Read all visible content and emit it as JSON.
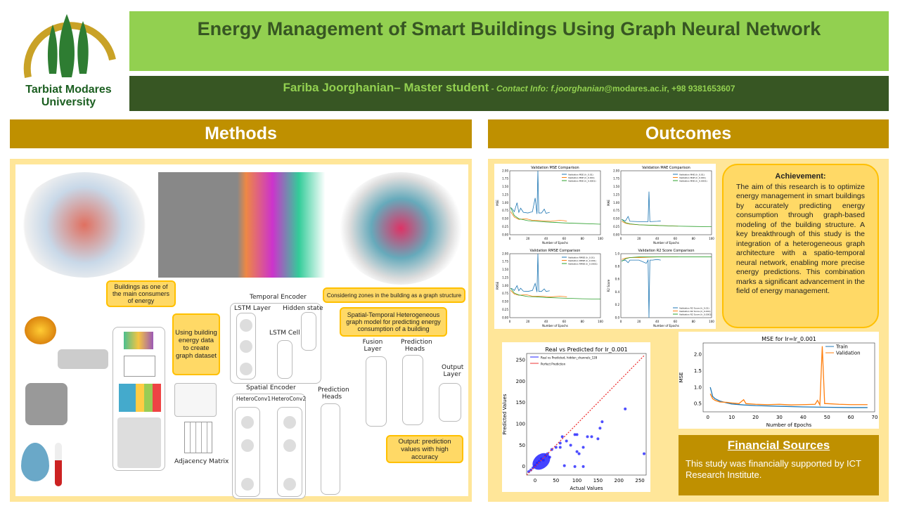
{
  "header": {
    "title": "Energy Management of Smart Buildings Using Graph Neural Network",
    "author": "Fariba Joorghanian– Master student",
    "contact_label": " - Contact Info: f.joorghanian",
    "contact_rest": "@modares.ac.ir, +98 9381653607"
  },
  "logo": {
    "line1": "Tarbiat Modares",
    "line2": "University",
    "colors": {
      "gold": "#c9a227",
      "green": "#2e7d32"
    }
  },
  "methods": {
    "heading": "Methods",
    "callouts": {
      "consumers": "Buildings as one of the main consumers of energy",
      "dataset": "Using building energy data to create graph dataset",
      "zones": "Considering zones in the building as a graph structure",
      "model": "Spatial-Temporal Heterogeneous graph model for predicting energy consumption of a building",
      "output": "Output: prediction values with high accuracy"
    },
    "diagram": {
      "temporal_encoder": "Temporal Encoder",
      "lstm_layer": "LSTM Layer",
      "hidden_state": "Hidden state",
      "lstm_cell": "LSTM Cell",
      "spatial_encoder": "Spatial Encoder",
      "heteroconv1": "HeteroConv1",
      "heteroconv2": "HeteroConv2",
      "prediction_heads": "Prediction Heads",
      "fusion_layer": "Fusion Layer",
      "prediction_heads2": "Prediction Heads",
      "output_layer": "Output Layer",
      "adjacency_matrix": "Adjacency Matrix"
    }
  },
  "outcomes": {
    "heading": "Outcomes",
    "achievement": {
      "title": "Achievement:",
      "text": "The aim of this research is to optimize energy management in smart buildings by accurately predicting energy consumption through graph-based modeling of the building structure. A key breakthrough of this study is the integration of a heterogeneous graph architecture with a spatio-temporal neural network, enabling more precise energy predictions. This combination marks a significant advancement in the field of energy management."
    },
    "financial": {
      "title": "Financial Sources",
      "text": "This study was financially supported by ICT Research Institute."
    }
  },
  "colors": {
    "lr_0.01": "#1f77b4",
    "lr_0.001": "#ff7f0e",
    "lr_0.0001": "#2ca02c",
    "train": "#1f77b4",
    "validation": "#ff7f0e"
  },
  "chart_data": [
    {
      "type": "line",
      "title": "Validation MSE Comparison",
      "xlabel": "Number of Epochs",
      "ylabel": "MSE",
      "xlim": [
        0,
        100
      ],
      "ylim": [
        0,
        2
      ],
      "xticks": [
        "0",
        "20",
        "40",
        "60",
        "80",
        "100"
      ],
      "yticks": [
        "0.00",
        "0.25",
        "0.50",
        "0.75",
        "1.00",
        "1.25",
        "1.50",
        "1.75",
        "2.00"
      ],
      "legend": "top-right",
      "series": [
        {
          "name": "Validation MSE (lr_0.01)",
          "x": [
            1,
            3,
            5,
            8,
            10,
            12,
            15,
            20,
            25,
            28,
            30,
            31,
            32,
            35,
            38,
            40,
            44
          ],
          "y": [
            0.85,
            0.8,
            0.72,
            1.0,
            0.7,
            0.83,
            0.7,
            0.68,
            0.72,
            1.15,
            0.65,
            2.0,
            0.68,
            0.68,
            0.8,
            0.67,
            0.7
          ]
        },
        {
          "name": "Validation MSE (lr_0.001)",
          "x": [
            1,
            5,
            10,
            18,
            25,
            35,
            45,
            55,
            60,
            63
          ],
          "y": [
            0.72,
            0.55,
            0.48,
            0.5,
            0.45,
            0.44,
            0.42,
            0.45,
            0.44,
            0.42
          ]
        },
        {
          "name": "Validation MSE (lr_0.0001)",
          "x": [
            1,
            5,
            10,
            20,
            30,
            40,
            60,
            80,
            100
          ],
          "y": [
            0.85,
            0.6,
            0.5,
            0.44,
            0.42,
            0.4,
            0.37,
            0.35,
            0.33
          ]
        }
      ]
    },
    {
      "type": "line",
      "title": "Validation MAE Comparison",
      "xlabel": "Number of Epochs",
      "ylabel": "MAE",
      "xlim": [
        0,
        100
      ],
      "ylim": [
        0,
        2
      ],
      "xticks": [
        "0",
        "20",
        "40",
        "60",
        "80",
        "100"
      ],
      "yticks": [
        "0.00",
        "0.25",
        "0.50",
        "0.75",
        "1.00",
        "1.25",
        "1.50",
        "1.75",
        "2.00"
      ],
      "legend": "top-right",
      "series": [
        {
          "name": "Validation MAE (lr_0.01)",
          "x": [
            1,
            5,
            8,
            10,
            20,
            30,
            31,
            32,
            40,
            44
          ],
          "y": [
            0.48,
            0.43,
            0.57,
            0.42,
            0.41,
            0.41,
            1.35,
            0.41,
            0.42,
            0.43
          ]
        },
        {
          "name": "Validation MAE (lr_0.001)",
          "x": [
            1,
            5,
            10,
            20,
            30,
            40,
            50,
            63
          ],
          "y": [
            0.42,
            0.36,
            0.33,
            0.31,
            0.3,
            0.29,
            0.28,
            0.27
          ]
        },
        {
          "name": "Validation MAE (lr_0.0001)",
          "x": [
            1,
            5,
            10,
            20,
            40,
            60,
            80,
            100
          ],
          "y": [
            0.48,
            0.38,
            0.34,
            0.31,
            0.29,
            0.27,
            0.26,
            0.25
          ]
        }
      ]
    },
    {
      "type": "line",
      "title": "Validation RMSE Comparison",
      "xlabel": "Number of Epochs",
      "ylabel": "RMSE",
      "xlim": [
        0,
        100
      ],
      "ylim": [
        0,
        2
      ],
      "xticks": [
        "0",
        "20",
        "40",
        "60",
        "80",
        "100"
      ],
      "yticks": [
        "0.00",
        "0.25",
        "0.50",
        "0.75",
        "1.00",
        "1.25",
        "1.50",
        "1.75",
        "2.00"
      ],
      "legend": "top-right",
      "series": [
        {
          "name": "Validation RMSE (lr_0.01)",
          "x": [
            1,
            3,
            5,
            8,
            10,
            12,
            15,
            20,
            25,
            28,
            30,
            31,
            32,
            35,
            38,
            40,
            44
          ],
          "y": [
            0.92,
            0.9,
            0.85,
            1.0,
            0.84,
            0.92,
            0.83,
            0.82,
            0.85,
            1.07,
            0.8,
            2.0,
            0.82,
            0.82,
            0.9,
            0.82,
            0.84
          ]
        },
        {
          "name": "Validation RMSE (lr_0.001)",
          "x": [
            1,
            5,
            10,
            18,
            25,
            35,
            45,
            55,
            60,
            63
          ],
          "y": [
            0.85,
            0.74,
            0.7,
            0.72,
            0.67,
            0.67,
            0.65,
            0.67,
            0.66,
            0.65
          ]
        },
        {
          "name": "Validation RMSE (lr_0.0001)",
          "x": [
            1,
            5,
            10,
            20,
            30,
            40,
            60,
            80,
            100
          ],
          "y": [
            0.92,
            0.77,
            0.71,
            0.66,
            0.65,
            0.63,
            0.61,
            0.59,
            0.58
          ]
        }
      ]
    },
    {
      "type": "line",
      "title": "Validation R2 Score Comparison",
      "xlabel": "Number of Epochs",
      "ylabel": "R2 Score",
      "xlim": [
        0,
        100
      ],
      "ylim": [
        0,
        1
      ],
      "xticks": [
        "0",
        "20",
        "40",
        "60",
        "80",
        "100"
      ],
      "yticks": [
        "0.0",
        "0.2",
        "0.4",
        "0.6",
        "0.8",
        "1.0"
      ],
      "legend": "bottom-right",
      "series": [
        {
          "name": "Validation R2 Score (lr_0.01)",
          "x": [
            1,
            5,
            8,
            10,
            20,
            28,
            30,
            31,
            32,
            35,
            40,
            44
          ],
          "y": [
            0.89,
            0.9,
            0.86,
            0.9,
            0.9,
            0.85,
            0.9,
            0.0,
            0.9,
            0.9,
            0.91,
            0.9
          ]
        },
        {
          "name": "Validation R2 Score (lr_0.001)",
          "x": [
            1,
            5,
            10,
            20,
            40,
            63
          ],
          "y": [
            0.91,
            0.93,
            0.94,
            0.94,
            0.95,
            0.95
          ]
        },
        {
          "name": "Validation R2 Score (lr_0.0001)",
          "x": [
            1,
            5,
            10,
            20,
            40,
            60,
            100
          ],
          "y": [
            0.88,
            0.92,
            0.94,
            0.95,
            0.95,
            0.95,
            0.95
          ]
        }
      ]
    },
    {
      "type": "scatter",
      "title": "Real vs Predicted for lr_0.001",
      "xlabel": "Actual Values",
      "ylabel": "Predicted Values",
      "xlim": [
        -20,
        265
      ],
      "ylim": [
        -20,
        265
      ],
      "xticks": [
        "0",
        "50",
        "100",
        "150",
        "200",
        "250"
      ],
      "yticks": [
        "0",
        "50",
        "100",
        "150",
        "200",
        "250"
      ],
      "legend": "top-left",
      "series": [
        {
          "name": "Real vs Predicted, hidden_channels_128",
          "x": [
            -15,
            -10,
            -5,
            0,
            5,
            10,
            15,
            20,
            25,
            30,
            35,
            40,
            50,
            60,
            65,
            75,
            85,
            95,
            100,
            105,
            115,
            125,
            135,
            150,
            155,
            160,
            215,
            260,
            70,
            95,
            115,
            60,
            100
          ],
          "y": [
            -12,
            -8,
            -3,
            2,
            8,
            12,
            18,
            15,
            25,
            30,
            22,
            40,
            45,
            55,
            70,
            60,
            50,
            75,
            75,
            30,
            45,
            70,
            70,
            65,
            90,
            105,
            135,
            30,
            2,
            0,
            0,
            45,
            35
          ]
        },
        {
          "name": "Perfect Prediction",
          "x": [
            -20,
            260
          ],
          "y": [
            -20,
            260
          ]
        }
      ]
    },
    {
      "type": "line",
      "title": "MSE for lr=lr_0.001",
      "xlabel": "Number of Epochs",
      "ylabel": "MSE",
      "xlim": [
        -2,
        70
      ],
      "ylim": [
        0.25,
        2.35
      ],
      "xticks": [
        "0",
        "10",
        "20",
        "30",
        "40",
        "50",
        "60",
        "70"
      ],
      "yticks": [
        "0.5",
        "1.0",
        "1.5",
        "2.0"
      ],
      "legend": "top-right",
      "series": [
        {
          "name": "Train",
          "x": [
            1,
            2,
            3,
            5,
            8,
            10,
            15,
            20,
            30,
            40,
            50,
            60,
            67
          ],
          "y": [
            1.0,
            0.72,
            0.65,
            0.58,
            0.52,
            0.49,
            0.46,
            0.44,
            0.42,
            0.4,
            0.39,
            0.38,
            0.38
          ]
        },
        {
          "name": "Validation",
          "x": [
            1,
            2,
            3,
            5,
            8,
            10,
            13,
            15,
            16,
            20,
            25,
            30,
            35,
            40,
            45,
            46,
            47,
            48,
            49,
            50,
            55,
            60,
            67
          ],
          "y": [
            0.8,
            0.65,
            0.6,
            0.55,
            0.54,
            0.52,
            0.5,
            0.62,
            0.5,
            0.48,
            0.47,
            0.48,
            0.46,
            0.47,
            0.48,
            0.6,
            0.46,
            2.25,
            0.5,
            0.5,
            0.48,
            0.47,
            0.47
          ]
        }
      ]
    }
  ]
}
